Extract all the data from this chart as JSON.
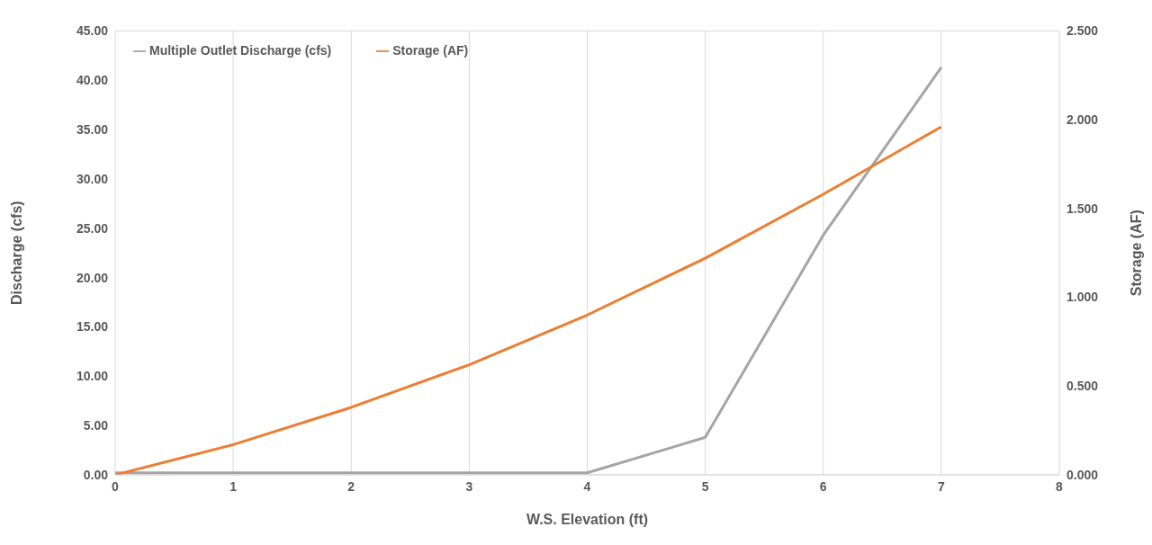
{
  "chart_data": {
    "type": "line",
    "xlabel": "W.S. Elevation (ft)",
    "ylabel": "Discharge (cfs)",
    "y2label": "Storage (AF)",
    "x": [
      0,
      1,
      2,
      3,
      4,
      5,
      6,
      7
    ],
    "series": [
      {
        "name": "Multiple Outlet Discharge (cfs)",
        "color": "#a5a5a5",
        "values": [
          0.2,
          0.2,
          0.2,
          0.2,
          0.2,
          3.8,
          24.3,
          41.3
        ]
      },
      {
        "name": "Storage (AF)",
        "color": "#ed7d31",
        "axis": "y2",
        "values": [
          0,
          0.17,
          0.38,
          0.62,
          0.9,
          1.22,
          1.58,
          1.96
        ]
      }
    ],
    "xlim": [
      0,
      8
    ],
    "xticks": [
      0,
      1,
      2,
      3,
      4,
      5,
      6,
      7,
      8
    ],
    "ylim": [
      0,
      45
    ],
    "yticks": [
      {
        "value": 0,
        "label": "0.00"
      },
      {
        "value": 5,
        "label": "5.00"
      },
      {
        "value": 10,
        "label": "10.00"
      },
      {
        "value": 15,
        "label": "15.00"
      },
      {
        "value": 20,
        "label": "20.00"
      },
      {
        "value": 25,
        "label": "25.00"
      },
      {
        "value": 30,
        "label": "30.00"
      },
      {
        "value": 35,
        "label": "35.00"
      },
      {
        "value": 40,
        "label": "40.00"
      },
      {
        "value": 45,
        "label": "45.00"
      }
    ],
    "y2lim": [
      0,
      2.5
    ],
    "y2ticks": [
      {
        "value": 0,
        "label": "0.000"
      },
      {
        "value": 0.5,
        "label": "0.500"
      },
      {
        "value": 1,
        "label": "1.000"
      },
      {
        "value": 1.5,
        "label": "1.500"
      },
      {
        "value": 2,
        "label": "2.000"
      },
      {
        "value": 2.5,
        "label": "2.500"
      }
    ],
    "grid": true,
    "legend": "top left",
    "marker": "none",
    "line_style": "solid"
  }
}
